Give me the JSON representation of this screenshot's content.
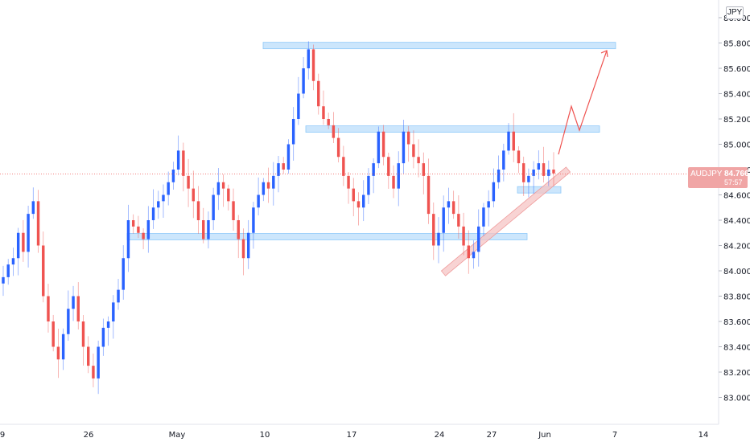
{
  "symbol": "AUDJPY",
  "currency": "JPY",
  "last_price": "84.766",
  "countdown": "57:57",
  "colors": {
    "up": "#2962ff",
    "down": "#ef5350",
    "zone": "#bbdefb",
    "trend": "#f6c4c4",
    "arrow": "#ef5350",
    "priceline": "#ef5350"
  },
  "chart_data": {
    "type": "candlestick",
    "y_axis": {
      "ticks": [
        "86.000",
        "85.800",
        "85.600",
        "85.400",
        "85.200",
        "85.000",
        "84.800",
        "84.600",
        "84.400",
        "84.200",
        "84.000",
        "83.800",
        "83.600",
        "83.400",
        "83.200",
        "83.000"
      ],
      "range": [
        82.9,
        86.05
      ]
    },
    "x_axis": {
      "ticks": [
        "9",
        "26",
        "May",
        "10",
        "17",
        "24",
        "27",
        "Jun",
        "7",
        "14"
      ]
    },
    "series": [
      {
        "close": [
          83.95,
          84.05,
          84.1,
          84.3,
          84.15,
          84.45,
          84.55,
          84.2,
          83.8,
          83.6,
          83.4,
          83.3,
          83.5,
          83.7,
          83.8,
          83.6,
          83.4,
          83.25,
          83.15,
          83.4,
          83.55,
          83.6,
          83.75,
          83.85,
          84.1,
          84.4,
          84.35,
          84.3,
          84.25,
          84.4,
          84.5,
          84.55,
          84.6,
          84.7,
          84.8,
          84.95,
          84.75,
          84.65,
          84.55,
          84.4,
          84.25,
          84.4,
          84.6,
          84.7,
          84.65,
          84.55,
          84.4,
          84.25,
          84.1,
          84.3,
          84.5,
          84.6,
          84.7,
          84.65,
          84.75,
          84.85,
          84.8,
          85.0,
          85.2,
          85.4,
          85.6,
          85.75,
          85.5,
          85.3,
          85.2,
          85.15,
          85.05,
          84.9,
          84.75,
          84.65,
          84.55,
          84.5,
          84.6,
          84.75,
          84.85,
          85.1,
          84.9,
          84.75,
          84.65,
          84.85,
          85.1,
          85.0,
          84.9,
          84.85,
          84.75,
          84.45,
          84.2,
          84.3,
          84.5,
          84.55,
          84.45,
          84.35,
          84.2,
          84.1,
          84.15,
          84.35,
          84.5,
          84.55,
          84.7,
          84.8,
          84.95,
          85.1,
          84.95,
          84.85,
          84.7,
          84.75,
          84.8,
          84.85,
          84.75,
          84.8,
          84.77
        ]
      }
    ],
    "annotations": [
      "resistance zone near 85.78",
      "resistance zone near 85.12",
      "support zone near 84.27",
      "small zone near 84.64",
      "rising trendline",
      "projected path arrow"
    ]
  }
}
